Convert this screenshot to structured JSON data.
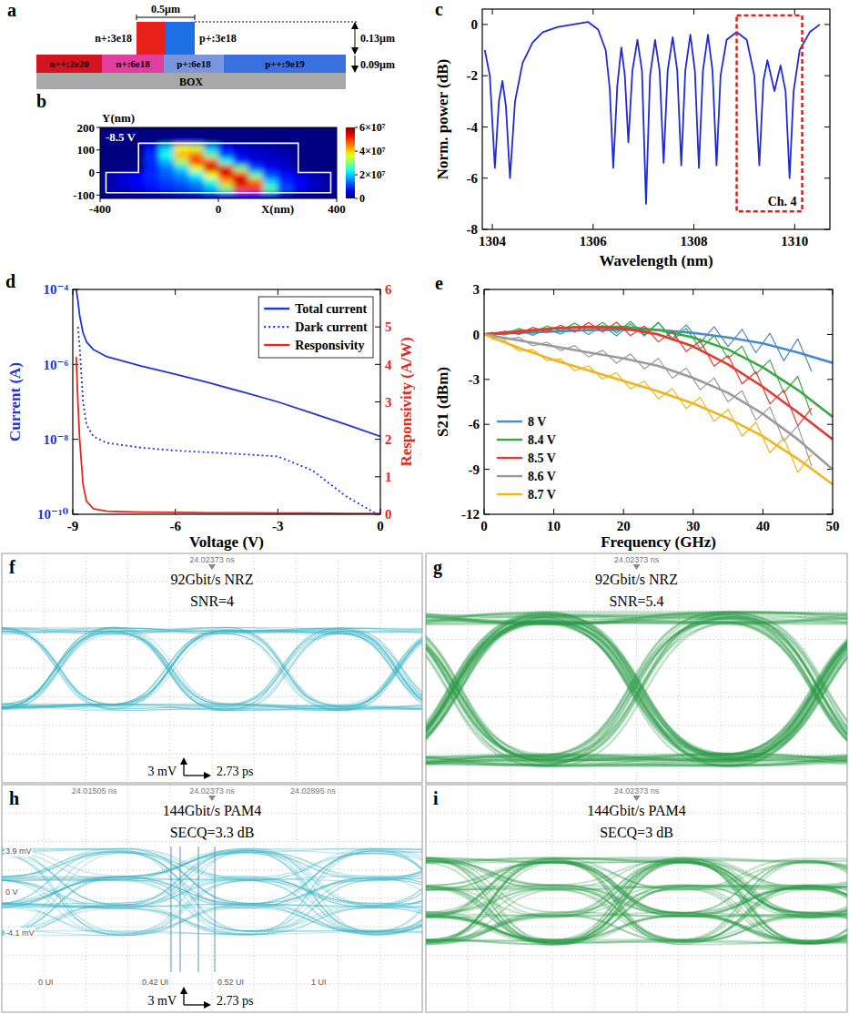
{
  "panel_a": {
    "label": "a",
    "top_width": "0.5µm",
    "rib": [
      {
        "text": "n+:3e18",
        "color": "#e8221b"
      },
      {
        "text": "p+:3e18",
        "color": "#1f6fe4"
      }
    ],
    "rib_height": "0.13µm",
    "slab_height": "0.09µm",
    "slab": [
      {
        "text": "n++:2e20",
        "color": "#d3141f"
      },
      {
        "text": "n+:6e18",
        "color": "#e23e9e"
      },
      {
        "text": "p+:6e18",
        "color": "#7a95dc"
      },
      {
        "text": "p++:9e19",
        "color": "#3a6fe0"
      }
    ],
    "box": "BOX",
    "box_color": "#a8a8a8"
  },
  "chart_data": [
    {
      "type": "heatmap",
      "label": "b",
      "annotation": "-8.5 V",
      "xlabel": "X(nm)",
      "ylabel": "Y(nm)",
      "x": [
        -375,
        -325,
        -275,
        -225,
        -175,
        -125,
        -75,
        -25,
        25,
        75,
        125,
        175,
        225,
        275,
        325,
        375
      ],
      "y": [
        -100,
        -70,
        -40,
        -10,
        20,
        50,
        80,
        110,
        140,
        170
      ],
      "cells": [
        [
          0,
          0,
          0,
          0,
          0,
          2000000.0,
          3000000.0,
          4000000.0,
          6000000.0,
          8000000.0,
          8000000.0,
          5000000.0,
          2000000.0,
          0,
          0,
          0
        ],
        [
          2000000.0,
          4000000.0,
          6000000.0,
          8000000.0,
          10000000.0,
          11000000.0,
          13000000.0,
          18000000.0,
          30000000.0,
          48000000.0,
          50000000.0,
          28000000.0,
          12000000.0,
          7000000.0,
          4000000.0,
          2000000.0
        ],
        [
          2000000.0,
          5000000.0,
          7000000.0,
          9000000.0,
          11000000.0,
          13000000.0,
          16000000.0,
          24000000.0,
          42000000.0,
          56000000.0,
          46000000.0,
          20000000.0,
          10000000.0,
          7000000.0,
          4000000.0,
          2000000.0
        ],
        [
          2000000.0,
          5000000.0,
          7000000.0,
          10000000.0,
          13000000.0,
          16000000.0,
          22000000.0,
          38000000.0,
          54000000.0,
          52000000.0,
          28000000.0,
          12000000.0,
          8000000.0,
          6000000.0,
          3000000.0,
          2000000.0
        ],
        [
          0,
          0,
          0,
          9000000.0,
          14000000.0,
          20000000.0,
          36000000.0,
          56000000.0,
          54000000.0,
          30000000.0,
          12000000.0,
          7000000.0,
          5000000.0,
          0,
          0,
          0
        ],
        [
          0,
          0,
          0,
          10000000.0,
          18000000.0,
          32000000.0,
          50000000.0,
          48000000.0,
          25000000.0,
          10000000.0,
          6000000.0,
          5000000.0,
          4000000.0,
          0,
          0,
          0
        ],
        [
          0,
          0,
          0,
          10000000.0,
          24000000.0,
          42000000.0,
          46000000.0,
          28000000.0,
          12000000.0,
          6000000.0,
          5000000.0,
          4000000.0,
          3000000.0,
          0,
          0,
          0
        ],
        [
          0,
          0,
          0,
          8000000.0,
          20000000.0,
          38000000.0,
          35000000.0,
          18000000.0,
          8000000.0,
          5000000.0,
          4000000.0,
          3000000.0,
          2000000.0,
          0,
          0,
          0
        ],
        [
          0,
          0,
          0,
          0,
          0,
          3000000.0,
          3000000.0,
          0,
          0,
          0,
          0,
          0,
          0,
          0,
          0,
          0
        ],
        [
          0,
          0,
          0,
          0,
          0,
          0,
          0,
          0,
          0,
          0,
          0,
          0,
          0,
          0,
          0,
          0
        ]
      ],
      "outline_x": [
        -380,
        -380,
        -270,
        -270,
        270,
        270,
        380,
        380,
        -380
      ],
      "outline_y": [
        -90,
        0,
        0,
        130,
        130,
        0,
        0,
        -90,
        -90
      ],
      "xlim": [
        -400,
        400
      ],
      "ylim": [
        -115,
        200
      ],
      "xticks": [
        -400,
        0,
        400
      ],
      "yticks": [
        -100,
        0,
        100,
        200
      ],
      "colorbar": {
        "range": [
          0,
          60000000.0
        ],
        "ticks": [
          0,
          {
            "value": 20000000.0,
            "label": "2×10⁷"
          },
          {
            "value": 40000000.0,
            "label": "4×10⁷"
          },
          {
            "value": 60000000.0,
            "label": "6×10⁷"
          }
        ]
      }
    },
    {
      "type": "line",
      "label": "c",
      "xlabel": "Wavelength (nm)",
      "ylabel": "Norm. power (dB)",
      "color": "#1f2bd6",
      "x": [
        1303.85,
        1303.95,
        1304.05,
        1304.13,
        1304.2,
        1304.27,
        1304.35,
        1304.45,
        1304.6,
        1304.8,
        1305.0,
        1305.3,
        1305.6,
        1305.9,
        1306.1,
        1306.25,
        1306.33,
        1306.4,
        1306.48,
        1306.56,
        1306.63,
        1306.7,
        1306.78,
        1306.88,
        1306.97,
        1307.05,
        1307.13,
        1307.23,
        1307.32,
        1307.4,
        1307.48,
        1307.58,
        1307.67,
        1307.75,
        1307.83,
        1307.93,
        1308.02,
        1308.1,
        1308.18,
        1308.28,
        1308.37,
        1308.45,
        1308.53,
        1308.65,
        1308.85,
        1309.05,
        1309.2,
        1309.3,
        1309.38,
        1309.46,
        1309.6,
        1309.72,
        1309.82,
        1309.9,
        1309.98,
        1310.1,
        1310.3,
        1310.5
      ],
      "values": [
        -1.0,
        -2.0,
        -5.6,
        -3.0,
        -2.2,
        -3.2,
        -6.0,
        -3.0,
        -1.5,
        -0.7,
        -0.3,
        -0.1,
        0.0,
        0.1,
        -0.2,
        -1.0,
        -2.5,
        -5.6,
        -2.4,
        -0.9,
        -2.0,
        -4.6,
        -1.8,
        -0.6,
        -1.8,
        -7.0,
        -2.0,
        -0.6,
        -1.8,
        -5.4,
        -1.8,
        -0.5,
        -1.8,
        -5.5,
        -1.8,
        -0.4,
        -1.8,
        -5.6,
        -1.8,
        -0.4,
        -1.8,
        -5.5,
        -2.0,
        -0.6,
        -0.3,
        -0.6,
        -2.0,
        -5.5,
        -2.2,
        -1.4,
        -2.6,
        -1.6,
        -2.6,
        -6.0,
        -2.6,
        -1.0,
        -0.3,
        0.0
      ],
      "highlight": {
        "x": [
          1308.85,
          1310.15
        ],
        "y": [
          -7.3,
          0.35
        ],
        "label": "Ch. 4",
        "color": "#e0201a"
      },
      "xlim": [
        1303.8,
        1310.7
      ],
      "ylim": [
        -8,
        0.6
      ],
      "xticks": [
        1304,
        1306,
        1308,
        1310
      ],
      "yticks": [
        -8,
        -6,
        -4,
        -2,
        0
      ]
    },
    {
      "type": "line",
      "label": "d",
      "xlabel": "Voltage (V)",
      "ylabel": "Current (A)",
      "y2label": "Responsivity (A/W)",
      "x": [
        -8.9,
        -8.85,
        -8.8,
        -8.7,
        -8.6,
        -8.4,
        -8,
        -7,
        -6,
        -5,
        -4,
        -3,
        -2,
        -1,
        0
      ],
      "series": [
        {
          "name": "Total current",
          "color": "#1f35d8",
          "line_style": "solid",
          "values": [
            0.0001,
            5e-05,
            2e-05,
            7e-06,
            4e-06,
            2.5e-06,
            1.6e-06,
            9e-07,
            5.5e-07,
            3.2e-07,
            1.8e-07,
            1e-07,
            5e-08,
            2.5e-08,
            1.2e-08
          ]
        },
        {
          "name": "Dark current",
          "color": "#1f35d8",
          "line_style": "dotted",
          "values": [
            null,
            1e-05,
            3e-06,
            1e-07,
            2.5e-08,
            1.2e-08,
            8e-09,
            6e-09,
            5e-09,
            4.5e-09,
            4e-09,
            3.5e-09,
            1.5e-09,
            3e-10,
            9e-11
          ]
        },
        {
          "name": "Responsivity",
          "color": "#e8261c",
          "line_style": "solid",
          "axis": "y2",
          "values": [
            4.2,
            3.0,
            2.0,
            0.8,
            0.35,
            0.15,
            0.08,
            0.06,
            0.05,
            0.04,
            0.04,
            0.03,
            0.03,
            0.02,
            0.02
          ]
        }
      ],
      "log": "y",
      "legend": "top-right",
      "xlim": [
        -9,
        0
      ],
      "xticks": [
        -9,
        -6,
        -3,
        0
      ],
      "ylim": [
        1e-10,
        0.0001
      ],
      "yticks": [
        {
          "value": 1e-10,
          "label": "10⁻¹⁰"
        },
        {
          "value": 1e-08,
          "label": "10⁻⁸"
        },
        {
          "value": 1e-06,
          "label": "10⁻⁶"
        },
        {
          "value": 0.0001,
          "label": "10⁻⁴"
        }
      ],
      "y2lim": [
        0,
        6
      ],
      "y2ticks": [
        0,
        1,
        2,
        3,
        4,
        5,
        6
      ]
    },
    {
      "type": "line",
      "label": "e",
      "xlabel": "Frequency (GHz)",
      "ylabel": "S21 (dBm)",
      "x": [
        1,
        3,
        5,
        7,
        9,
        11,
        13,
        15,
        17,
        19,
        21,
        23,
        25,
        27,
        29,
        31,
        33,
        35,
        37,
        39,
        41,
        43,
        45,
        47
      ],
      "fit_x": [
        0,
        5,
        10,
        15,
        20,
        25,
        30,
        35,
        40,
        45,
        50
      ],
      "series": [
        {
          "name": "8 V",
          "color": "#4a8ac6",
          "values": [
            0.12,
            -0.04,
            0.3,
            -0.06,
            0.38,
            0.02,
            0.56,
            0,
            0.6,
            -0.1,
            0.7,
            -0.1,
            0.8,
            -0.28,
            0.64,
            -0.56,
            0.52,
            -0.8,
            0.34,
            -1.22,
            0.08,
            -1.76,
            -0.3,
            -2.48
          ],
          "fit": [
            0,
            0.1,
            0.2,
            0.3,
            0.3,
            0.3,
            0.1,
            -0.2,
            -0.6,
            -1.2,
            -1.9
          ]
        },
        {
          "name": "8.4 V",
          "color": "#3aa845",
          "values": [
            0.14,
            0.02,
            0.4,
            0.08,
            0.56,
            0.22,
            0.76,
            0.2,
            0.8,
            0.1,
            0.86,
            -0.02,
            0.8,
            -0.4,
            0.4,
            -0.96,
            -0.08,
            -1.6,
            -0.78,
            -2.66,
            -1.7,
            -3.9,
            -2.8,
            -5.42
          ],
          "fit": [
            0,
            0.2,
            0.4,
            0.5,
            0.5,
            0.3,
            -0.2,
            -1.0,
            -2.2,
            -3.7,
            -5.5
          ]
        },
        {
          "name": "8.5 V",
          "color": "#e23a32",
          "values": [
            -0.06,
            0.22,
            0,
            0.48,
            0.16,
            0.62,
            0.16,
            0.8,
            0.16,
            0.82,
            -0.08,
            0.56,
            -0.5,
            0.18,
            -1.14,
            -0.44,
            -2.12,
            -1.4,
            -3.3,
            -2.5,
            -4.64,
            -3.72,
            -6.1,
            -4.92
          ],
          "fit": [
            0,
            0.2,
            0.4,
            0.5,
            0.4,
            0.0,
            -0.8,
            -2.0,
            -3.5,
            -5.2,
            -7.0
          ]
        },
        {
          "name": "8.6 V",
          "color": "#9b9b9b",
          "values": [
            0.02,
            -0.34,
            -0.2,
            -0.76,
            -0.52,
            -1.08,
            -0.74,
            -1.5,
            -1.06,
            -1.92,
            -1.3,
            -2.3,
            -1.6,
            -2.92,
            -2.24,
            -3.7,
            -2.9,
            -4.5,
            -3.76,
            -5.72,
            -4.84,
            -7.12,
            -6.1,
            -8.8
          ],
          "fit": [
            0,
            -0.4,
            -0.8,
            -1.2,
            -1.6,
            -2.1,
            -2.9,
            -3.9,
            -5.3,
            -7.0,
            -9.0
          ]
        },
        {
          "name": "8.7 V",
          "color": "#f0b41c",
          "values": [
            -0.28,
            -0.44,
            -1.1,
            -1.02,
            -1.74,
            -1.64,
            -2.42,
            -2.1,
            -2.98,
            -2.56,
            -3.64,
            -3.12,
            -4.3,
            -3.62,
            -4.94,
            -4.2,
            -5.8,
            -5.0,
            -6.78,
            -5.86,
            -7.9,
            -6.9,
            -9.2,
            -7.98
          ],
          "fit": [
            0,
            -0.9,
            -1.7,
            -2.4,
            -3.1,
            -3.8,
            -4.6,
            -5.6,
            -6.8,
            -8.3,
            -10.0
          ]
        }
      ],
      "legend": "bottom-left",
      "xlim": [
        0,
        50
      ],
      "xticks": [
        0,
        10,
        20,
        30,
        40,
        50
      ],
      "ylim": [
        -12,
        3
      ],
      "yticks": [
        -12,
        -9,
        -6,
        -3,
        0,
        3
      ]
    }
  ],
  "eye_diagrams": [
    {
      "label": "f",
      "title": "92Gbit/s NRZ",
      "metric": "SNR=4",
      "levels": 2,
      "color": "#35b3c4",
      "scale_v": "3 mV",
      "scale_t": "2.73 ps",
      "cursor_texts": [
        "24.02373 ns"
      ]
    },
    {
      "label": "g",
      "title": "92Gbit/s NRZ",
      "metric": "SNR=5.4",
      "levels": 2,
      "color": "#2b9a48",
      "cursor_texts": [
        "24.02373 ns"
      ]
    },
    {
      "label": "h",
      "title": "144Gbit/s PAM4",
      "metric": "SECQ=3.3 dB",
      "levels": 4,
      "color": "#35b3c4",
      "scale_v": "3 mV",
      "scale_t": "2.73 ps",
      "cursor_texts": [
        "24.01505 ns",
        "24.02373 ns",
        "24.02895 ns"
      ],
      "level_texts": [
        "3.9 mV",
        "0 V",
        "-4.1 mV"
      ],
      "ui_texts": [
        "0 UI",
        "0.42 UI",
        "0.52 UI",
        "1 UI"
      ]
    },
    {
      "label": "i",
      "title": "144Gbit/s PAM4",
      "metric": "SECQ=3 dB",
      "levels": 4,
      "color": "#2b9a48",
      "cursor_texts": [
        "24.02373 ns"
      ]
    }
  ]
}
